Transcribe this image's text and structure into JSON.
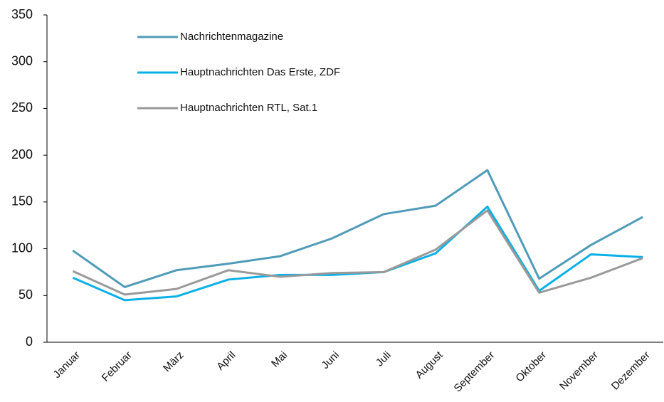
{
  "chart_data": {
    "type": "line",
    "categories": [
      "Januar",
      "Februar",
      "März",
      "April",
      "Mai",
      "Juni",
      "Juli",
      "August",
      "September",
      "Oktober",
      "November",
      "Dezember"
    ],
    "series": [
      {
        "name": "Nachrichtenmagazine",
        "color": "#4f9bb8",
        "values": [
          98,
          59,
          77,
          84,
          92,
          111,
          137,
          146,
          184,
          68,
          104,
          134
        ]
      },
      {
        "name": "Hauptnachrichten Das Erste, ZDF",
        "color": "#0ab0e6",
        "values": [
          69,
          45,
          49,
          67,
          72,
          72,
          75,
          95,
          145,
          55,
          94,
          91
        ]
      },
      {
        "name": "Hauptnachrichten RTL, Sat.1",
        "color": "#9a9a9a",
        "values": [
          76,
          51,
          57,
          77,
          70,
          74,
          75,
          99,
          141,
          53,
          69,
          90
        ]
      }
    ],
    "ylim": [
      0,
      350
    ],
    "yticks": [
      0,
      50,
      100,
      150,
      200,
      250,
      300,
      350
    ],
    "grid": false,
    "legend": "top-left"
  }
}
